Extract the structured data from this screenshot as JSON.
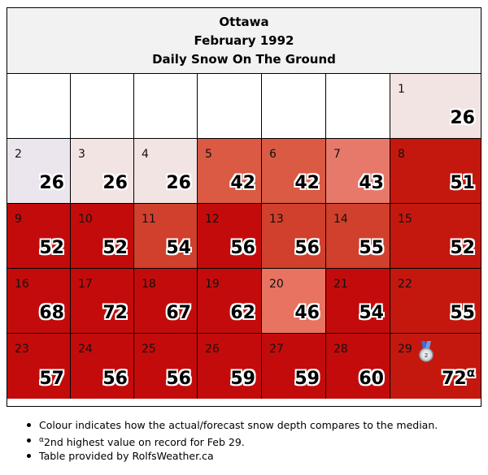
{
  "header": {
    "city": "Ottawa",
    "month": "February 1992",
    "subtitle": "Daily Snow On The Ground"
  },
  "days": [
    {
      "day": "1",
      "value": "26",
      "color": "#f2e4e2"
    },
    {
      "day": "2",
      "value": "26",
      "color": "#ebe6ee"
    },
    {
      "day": "3",
      "value": "26",
      "color": "#f2e4e2"
    },
    {
      "day": "4",
      "value": "26",
      "color": "#f2e4e2"
    },
    {
      "day": "5",
      "value": "42",
      "color": "#da5a43"
    },
    {
      "day": "6",
      "value": "42",
      "color": "#da5a43"
    },
    {
      "day": "7",
      "value": "43",
      "color": "#e7796a"
    },
    {
      "day": "8",
      "value": "51",
      "color": "#c4180f"
    },
    {
      "day": "9",
      "value": "52",
      "color": "#c40b0b"
    },
    {
      "day": "10",
      "value": "52",
      "color": "#c40b0b"
    },
    {
      "day": "11",
      "value": "54",
      "color": "#d0402d"
    },
    {
      "day": "12",
      "value": "56",
      "color": "#c40b0b"
    },
    {
      "day": "13",
      "value": "56",
      "color": "#d0402d"
    },
    {
      "day": "14",
      "value": "55",
      "color": "#d0402d"
    },
    {
      "day": "15",
      "value": "52",
      "color": "#c4180f"
    },
    {
      "day": "16",
      "value": "68",
      "color": "#c40b0b"
    },
    {
      "day": "17",
      "value": "72",
      "color": "#c40b0b"
    },
    {
      "day": "18",
      "value": "67",
      "color": "#c40b0b"
    },
    {
      "day": "19",
      "value": "62",
      "color": "#c40b0b"
    },
    {
      "day": "20",
      "value": "46",
      "color": "#e77360"
    },
    {
      "day": "21",
      "value": "54",
      "color": "#c40b0b"
    },
    {
      "day": "22",
      "value": "55",
      "color": "#c4180f"
    },
    {
      "day": "23",
      "value": "57",
      "color": "#c40b0b"
    },
    {
      "day": "24",
      "value": "56",
      "color": "#c40b0b"
    },
    {
      "day": "25",
      "value": "56",
      "color": "#c40b0b"
    },
    {
      "day": "26",
      "value": "59",
      "color": "#c40b0b"
    },
    {
      "day": "27",
      "value": "59",
      "color": "#c40b0b"
    },
    {
      "day": "28",
      "value": "60",
      "color": "#c40b0b"
    },
    {
      "day": "29",
      "value": "72",
      "marker": "α",
      "color": "#c4180f",
      "icon": "silver-medal-icon"
    }
  ],
  "notes": {
    "colour": "Colour indicates how the actual/forecast snow depth compares to the median.",
    "record_marker": "α",
    "record": "2nd highest value on record for Feb 29.",
    "credit": "Table provided by RolfsWeather.ca"
  }
}
